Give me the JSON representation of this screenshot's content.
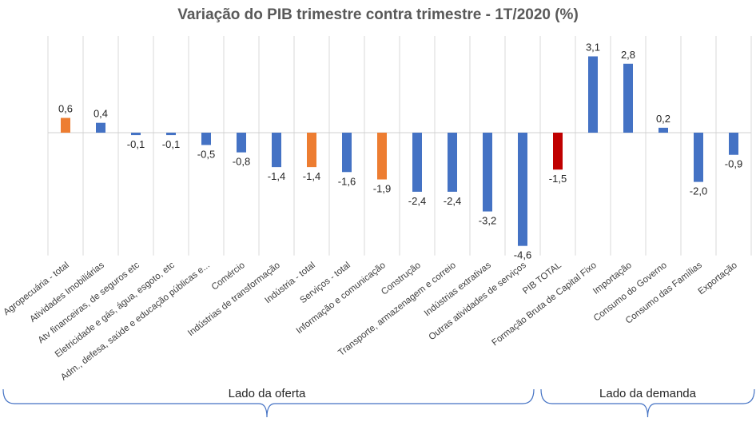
{
  "chart_data": {
    "type": "bar",
    "title": "Variação do PIB trimestre contra trimestre - 1T/2020 (%)",
    "xlabel": "",
    "ylabel": "",
    "ylim": [
      -4.6,
      3.1
    ],
    "grid": true,
    "legend": "none",
    "categories": [
      "Agropecuária - total",
      "Atividades Imobiliárias",
      "Atv financeiras, de seguros etc",
      "Eletricidade e gás, água, esgoto, etc",
      "Adm., defesa, saúde e educação públicas e...",
      "Comércio",
      "Indústrias de transformação",
      "Indústria - total",
      "Serviços - total",
      "Informação e comunicação",
      "Construção",
      "Transporte, armazenagem e correio",
      "Indústrias extrativas",
      "Outras atividades de serviços",
      "PIB TOTAL",
      "Formação Bruta de Capital Fixo",
      "Importação",
      "Consumo do Governo",
      "Consumo das Famílias",
      "Exportação"
    ],
    "values": [
      0.6,
      0.4,
      -0.1,
      -0.1,
      -0.5,
      -0.8,
      -1.4,
      -1.4,
      -1.6,
      -1.9,
      -2.4,
      -2.4,
      -3.2,
      -4.6,
      -1.5,
      3.1,
      2.8,
      0.2,
      -2.0,
      -0.9
    ],
    "data_labels": [
      "0,6",
      "0,4",
      "-0,1",
      "-0,1",
      "-0,5",
      "-0,8",
      "-1,4",
      "-1,4",
      "-1,6",
      "-1,9",
      "-2,4",
      "-2,4",
      "-3,2",
      "-4,6",
      "-1,5",
      "3,1",
      "2,8",
      "0,2",
      "-2,0",
      "-0,9"
    ],
    "colors": [
      "#ed7d31",
      "#4472c4",
      "#4472c4",
      "#4472c4",
      "#4472c4",
      "#4472c4",
      "#4472c4",
      "#ed7d31",
      "#4472c4",
      "#ed7d31",
      "#4472c4",
      "#4472c4",
      "#4472c4",
      "#4472c4",
      "#c00000",
      "#4472c4",
      "#4472c4",
      "#4472c4",
      "#4472c4",
      "#4472c4"
    ],
    "groups": [
      {
        "label": "Lado da oferta",
        "start": 0,
        "end": 14
      },
      {
        "label": "Lado da demanda",
        "start": 15,
        "end": 19
      }
    ]
  }
}
